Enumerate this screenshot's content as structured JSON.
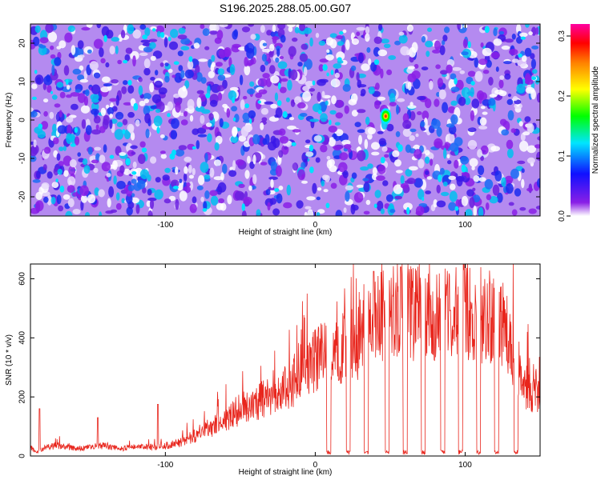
{
  "title": "S196.2025.288.05.00.G07",
  "chart_data": [
    {
      "type": "heatmap",
      "title": "S196.2025.288.05.00.G07",
      "xlabel": "Height of straight line (km)",
      "ylabel": "Frequency (Hz)",
      "xlim": [
        -190,
        150
      ],
      "ylim": [
        -25,
        25
      ],
      "x_ticks": [
        -100,
        0,
        100
      ],
      "y_ticks": [
        -20,
        -10,
        0,
        10,
        20
      ],
      "colorbar": {
        "label": "Normalized spectral amplitude",
        "range": [
          0,
          0.32
        ],
        "ticks": [
          0.0,
          0.1,
          0.2,
          0.3
        ],
        "tick_labels": [
          "0.0",
          "0.1",
          "0.2",
          "0.3"
        ],
        "colors": [
          "#ffffff",
          "#8a1fe6",
          "#0000ff",
          "#00e5ff",
          "#00ff00",
          "#ffff00",
          "#ff7f00",
          "#ff0000",
          "#ff00a0"
        ]
      },
      "peak": {
        "x": 47,
        "y": 1,
        "value": 0.3
      }
    },
    {
      "type": "line",
      "xlabel": "Height of straight line (km)",
      "ylabel": "SNR (10 * v/v)",
      "xlim": [
        -190,
        150
      ],
      "ylim": [
        0,
        650
      ],
      "x_ticks": [
        -100,
        0,
        100
      ],
      "y_ticks": [
        0,
        200,
        400,
        600
      ],
      "line_color": "#e8251c",
      "series": [
        {
          "x": [
            -190,
            -186,
            -180,
            -170,
            -160,
            -150,
            -140,
            -130,
            -120,
            -110,
            -100,
            -95,
            -90,
            -85,
            -80,
            -75,
            -70,
            -65,
            -60,
            -55,
            -50,
            -45,
            -40,
            -35,
            -30,
            -25,
            -20,
            -15,
            -10,
            -5,
            0,
            5,
            10,
            15,
            20,
            25,
            30,
            35,
            40,
            45,
            50,
            55,
            60,
            65,
            70,
            75,
            80,
            85,
            90,
            95,
            100,
            105,
            110,
            115,
            120,
            125,
            130,
            135,
            140,
            145,
            150
          ],
          "y": [
            30,
            10,
            30,
            35,
            25,
            30,
            35,
            25,
            30,
            30,
            35,
            40,
            45,
            60,
            70,
            85,
            95,
            110,
            120,
            140,
            160,
            170,
            180,
            190,
            200,
            210,
            230,
            250,
            280,
            300,
            320,
            340,
            350,
            360,
            370,
            380,
            400,
            430,
            450,
            470,
            480,
            490,
            500,
            490,
            480,
            480,
            470,
            480,
            470,
            480,
            480,
            470,
            480,
            470,
            460,
            460,
            400,
            300,
            240,
            220,
            230
          ],
          "spikes": [
            {
              "x": -184,
              "y": 160
            },
            {
              "x": -145,
              "y": 130
            },
            {
              "x": -105,
              "y": 175
            },
            {
              "x": 57,
              "y": 640
            },
            {
              "x": 39,
              "y": 625
            }
          ],
          "dips": [
            9,
            22,
            34,
            48,
            60,
            72,
            85,
            97,
            109,
            121,
            134
          ]
        }
      ]
    }
  ]
}
